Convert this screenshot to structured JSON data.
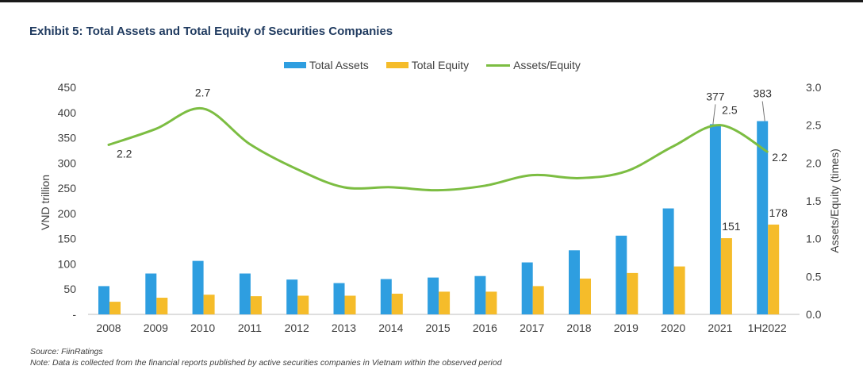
{
  "chart_data": {
    "type": "bar",
    "title": "Exhibit 5: Total Assets and Total Equity of Securities Companies",
    "categories": [
      "2008",
      "2009",
      "2010",
      "2011",
      "2012",
      "2013",
      "2014",
      "2015",
      "2016",
      "2017",
      "2018",
      "2019",
      "2020",
      "2021",
      "1H2022"
    ],
    "series": [
      {
        "name": "Total Assets",
        "type": "bar",
        "axis": "left",
        "color": "#2e9ee0",
        "values": [
          56,
          81,
          106,
          81,
          69,
          62,
          70,
          73,
          76,
          103,
          127,
          156,
          210,
          377,
          383
        ]
      },
      {
        "name": "Total Equity",
        "type": "bar",
        "axis": "left",
        "color": "#f5bc2a",
        "values": [
          25,
          33,
          39,
          36,
          37,
          37,
          41,
          45,
          45,
          56,
          71,
          82,
          95,
          151,
          178
        ]
      },
      {
        "name": "Assets/Equity",
        "type": "line",
        "axis": "right",
        "color": "#7cbd42",
        "values": [
          2.24,
          2.45,
          2.72,
          2.25,
          1.92,
          1.68,
          1.68,
          1.64,
          1.7,
          1.84,
          1.8,
          1.89,
          2.22,
          2.5,
          2.15
        ]
      }
    ],
    "ylabel": "VND trillion",
    "y2label": "Assets/Equity (times)",
    "ylim": [
      0,
      450
    ],
    "y2lim": [
      0,
      3.0
    ],
    "yticks": [
      "-",
      "50",
      "100",
      "150",
      "200",
      "250",
      "300",
      "350",
      "400",
      "450"
    ],
    "y2ticks": [
      "0.0",
      "0.5",
      "1.0",
      "1.5",
      "2.0",
      "2.5",
      "3.0"
    ],
    "data_labels": [
      {
        "series": "Assets/Equity",
        "index": 0,
        "text": "2.2"
      },
      {
        "series": "Assets/Equity",
        "index": 2,
        "text": "2.7"
      },
      {
        "series": "Assets/Equity",
        "index": 13,
        "text": "2.5"
      },
      {
        "series": "Assets/Equity",
        "index": 14,
        "text": "2.2"
      },
      {
        "series": "Total Assets",
        "index": 13,
        "text": "377"
      },
      {
        "series": "Total Assets",
        "index": 14,
        "text": "383"
      },
      {
        "series": "Total Equity",
        "index": 13,
        "text": "151"
      },
      {
        "series": "Total Equity",
        "index": 14,
        "text": "178"
      }
    ],
    "legend_position": "top-center",
    "grid": false
  },
  "source": "Source: FiinRatings",
  "note": "Note: Data is collected from the financial reports published by active securities companies in Vietnam within the observed period"
}
